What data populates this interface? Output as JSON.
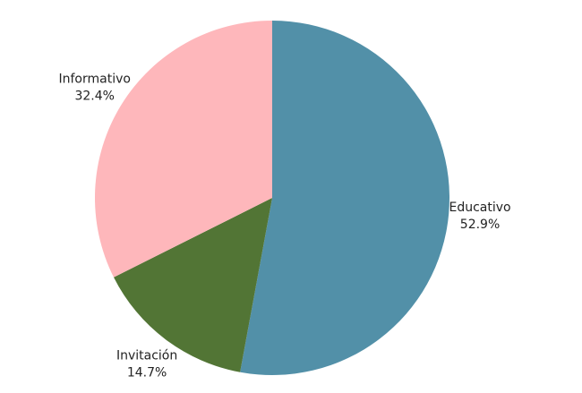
{
  "chart_data": {
    "type": "pie",
    "categories": [
      "Educativo",
      "Invitación",
      "Informativo"
    ],
    "values": [
      52.9,
      14.7,
      32.4
    ],
    "value_labels": [
      "52.9%",
      "14.7%",
      "32.4%"
    ],
    "colors": [
      "#5290a8",
      "#527535",
      "#feb7bb"
    ]
  }
}
